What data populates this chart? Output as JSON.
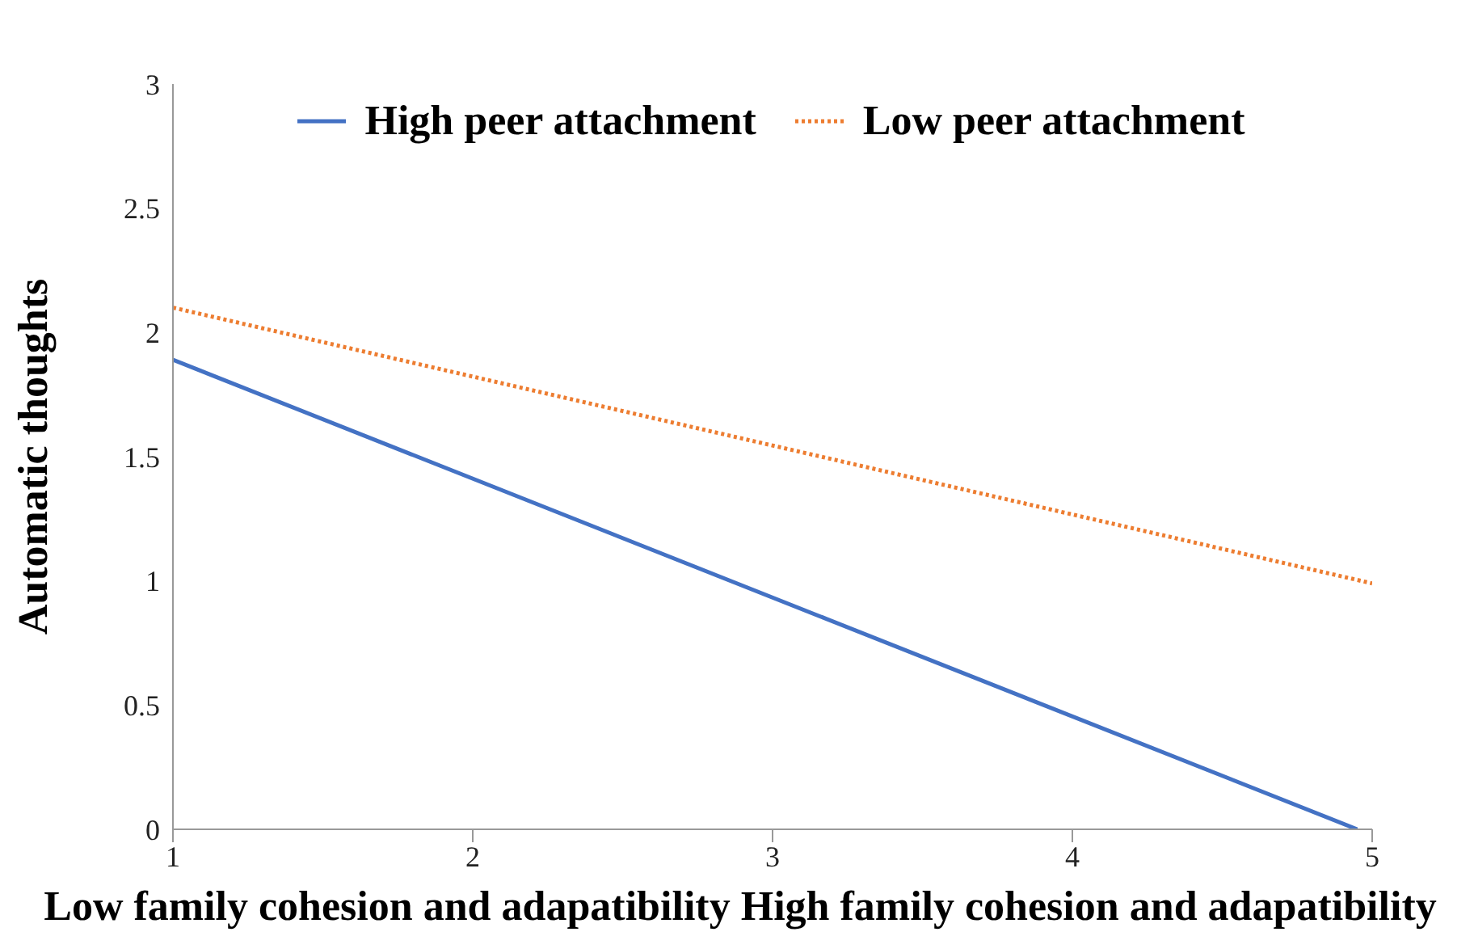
{
  "chart_data": {
    "type": "line",
    "xlabel": "Low family cohesion and adapatibility  High family cohesion and adapatibility",
    "ylabel": "Automatic thoughts",
    "series": [
      {
        "name": "High peer attachment",
        "color": "#4472c4",
        "x": [
          1,
          4.95
        ],
        "values": [
          1.89,
          0
        ],
        "line_style": "solid"
      },
      {
        "name": "Low peer attachment",
        "color": "#ed7d31",
        "x": [
          1,
          5
        ],
        "values": [
          2.1,
          0.99
        ],
        "line_style": "dotted"
      }
    ],
    "xlim": [
      1,
      5
    ],
    "xticks": [
      1,
      2,
      3,
      4,
      5
    ],
    "ylim": [
      0,
      3
    ],
    "yticks": [
      0,
      0.5,
      1,
      1.5,
      2,
      2.5,
      3
    ],
    "grid": false,
    "legend": "top",
    "marker": "none"
  }
}
